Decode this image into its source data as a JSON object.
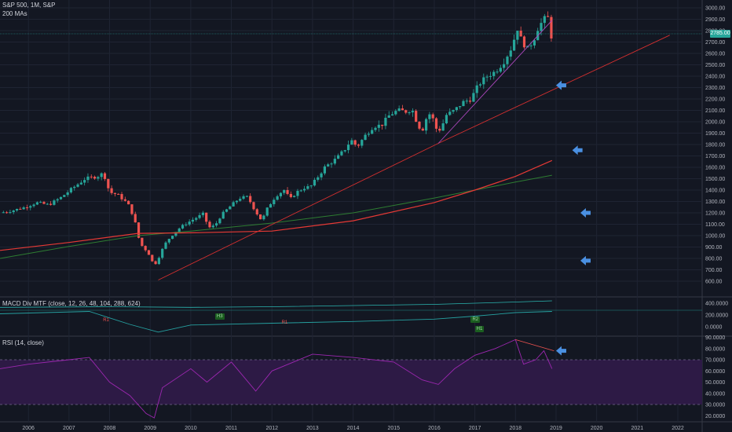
{
  "header": {
    "title": "S&P 500, 1M, S&P",
    "subtitle": "200 MAs"
  },
  "macd_header": "MACD Div MTF (close, 12, 26, 48, 104, 288, 624)",
  "rsi_header": "RSI (14, close)",
  "last_price": "2785.00",
  "colors": {
    "background": "#131722",
    "up": "#26a69a",
    "down": "#ef5350",
    "ma_red": "#e53935",
    "ma_green": "#2e7d32",
    "trend_red": "#d32f2f",
    "trend_purple": "#ab47bc",
    "arrow": "#4a90e2",
    "macd": "#26a0a0",
    "rsi": "#9c27b0",
    "rsi_band": "#2d1a45"
  },
  "macd_badges": [
    {
      "label": "R1",
      "color": "#ef5350"
    },
    {
      "label": "H3",
      "color": "#2e7d32"
    },
    {
      "label": "R1",
      "color": "#ef5350"
    },
    {
      "label": "R2",
      "color": "#2e7d32"
    },
    {
      "label": "H1",
      "color": "#2e7d32"
    }
  ],
  "chart_data": {
    "type": "candlestick",
    "price_axis": {
      "ticks": [
        "3000.00",
        "2900.00",
        "2800.00",
        "2700.00",
        "2600.00",
        "2500.00",
        "2400.00",
        "2300.00",
        "2200.00",
        "2100.00",
        "2000.00",
        "1900.00",
        "1800.00",
        "1700.00",
        "1600.00",
        "1500.00",
        "1400.00",
        "1300.00",
        "1200.00",
        "1100.00",
        "1000.00",
        "900.00",
        "800.00",
        "700.00",
        "600.00"
      ],
      "range": [
        560,
        3040
      ]
    },
    "macd_axis": {
      "ticks": [
        "400.0000",
        "200.0000",
        "0.0000"
      ]
    },
    "rsi_axis": {
      "ticks": [
        "90.0000",
        "80.0000",
        "70.0000",
        "60.0000",
        "50.0000",
        "40.0000",
        "30.0000",
        "20.0000"
      ],
      "range": [
        15,
        95
      ],
      "bands": [
        70,
        30
      ]
    },
    "time_axis": {
      "ticks": [
        "2006",
        "2007",
        "2008",
        "2009",
        "2010",
        "2011",
        "2012",
        "2013",
        "2014",
        "2015",
        "2016",
        "2017",
        "2018",
        "2019",
        "2020",
        "2021",
        "2022"
      ],
      "range": [
        2005.3,
        2022.6
      ]
    },
    "price_points": [
      [
        2005.3,
        1200
      ],
      [
        2005.6,
        1220
      ],
      [
        2005.9,
        1248
      ],
      [
        2006.2,
        1290
      ],
      [
        2006.5,
        1270
      ],
      [
        2006.8,
        1335
      ],
      [
        2007.1,
        1420
      ],
      [
        2007.4,
        1500
      ],
      [
        2007.7,
        1520
      ],
      [
        2007.85,
        1550
      ],
      [
        2008.0,
        1380
      ],
      [
        2008.2,
        1360
      ],
      [
        2008.45,
        1280
      ],
      [
        2008.6,
        1160
      ],
      [
        2008.75,
        930
      ],
      [
        2008.95,
        850
      ],
      [
        2009.1,
        735
      ],
      [
        2009.2,
        800
      ],
      [
        2009.35,
        920
      ],
      [
        2009.5,
        990
      ],
      [
        2009.7,
        1060
      ],
      [
        2009.9,
        1110
      ],
      [
        2010.2,
        1170
      ],
      [
        2010.3,
        1190
      ],
      [
        2010.45,
        1070
      ],
      [
        2010.6,
        1090
      ],
      [
        2010.75,
        1180
      ],
      [
        2010.95,
        1250
      ],
      [
        2011.2,
        1330
      ],
      [
        2011.4,
        1340
      ],
      [
        2011.6,
        1210
      ],
      [
        2011.75,
        1130
      ],
      [
        2011.9,
        1250
      ],
      [
        2012.1,
        1350
      ],
      [
        2012.3,
        1400
      ],
      [
        2012.45,
        1320
      ],
      [
        2012.6,
        1380
      ],
      [
        2012.8,
        1420
      ],
      [
        2012.95,
        1430
      ],
      [
        2013.1,
        1500
      ],
      [
        2013.3,
        1600
      ],
      [
        2013.45,
        1640
      ],
      [
        2013.6,
        1680
      ],
      [
        2013.8,
        1760
      ],
      [
        2013.95,
        1840
      ],
      [
        2014.1,
        1780
      ],
      [
        2014.3,
        1880
      ],
      [
        2014.5,
        1960
      ],
      [
        2014.7,
        1970
      ],
      [
        2014.9,
        2060
      ],
      [
        2015.1,
        2100
      ],
      [
        2015.3,
        2090
      ],
      [
        2015.45,
        2110
      ],
      [
        2015.6,
        1970
      ],
      [
        2015.7,
        1920
      ],
      [
        2015.85,
        2080
      ],
      [
        2015.95,
        2040
      ],
      [
        2016.05,
        1940
      ],
      [
        2016.15,
        1930
      ],
      [
        2016.3,
        2060
      ],
      [
        2016.5,
        2100
      ],
      [
        2016.7,
        2170
      ],
      [
        2016.9,
        2200
      ],
      [
        2017.1,
        2330
      ],
      [
        2017.3,
        2400
      ],
      [
        2017.5,
        2440
      ],
      [
        2017.7,
        2520
      ],
      [
        2017.9,
        2650
      ],
      [
        2018.05,
        2820
      ],
      [
        2018.15,
        2710
      ],
      [
        2018.3,
        2640
      ],
      [
        2018.45,
        2720
      ],
      [
        2018.55,
        2820
      ],
      [
        2018.7,
        2900
      ],
      [
        2018.8,
        2910
      ],
      [
        2018.9,
        2720
      ]
    ],
    "ma_red": [
      [
        2005.3,
        870
      ],
      [
        2007,
        940
      ],
      [
        2008.7,
        1020
      ],
      [
        2010,
        1025
      ],
      [
        2012,
        1040
      ],
      [
        2014,
        1130
      ],
      [
        2016,
        1290
      ],
      [
        2017,
        1400
      ],
      [
        2018,
        1520
      ],
      [
        2018.9,
        1660
      ]
    ],
    "ma_green": [
      [
        2005.3,
        800
      ],
      [
        2007,
        905
      ],
      [
        2008.7,
        1000
      ],
      [
        2010,
        1040
      ],
      [
        2012,
        1110
      ],
      [
        2014,
        1200
      ],
      [
        2016,
        1330
      ],
      [
        2017,
        1400
      ],
      [
        2018,
        1470
      ],
      [
        2018.9,
        1530
      ]
    ],
    "trend_red": [
      [
        2009.2,
        610
      ],
      [
        2016.1,
        1810
      ],
      [
        2021.8,
        2760
      ]
    ],
    "trend_purple": [
      [
        2016.1,
        1810
      ],
      [
        2018.9,
        2890
      ]
    ],
    "arrows": [
      [
        2019.0,
        2320
      ],
      [
        2019.4,
        1750
      ],
      [
        2019.6,
        1200
      ],
      [
        2019.6,
        780
      ]
    ],
    "macd_line": [
      [
        2005.3,
        220
      ],
      [
        2007.5,
        260
      ],
      [
        2008.5,
        40
      ],
      [
        2009.2,
        -90
      ],
      [
        2010,
        30
      ],
      [
        2012,
        60
      ],
      [
        2014,
        90
      ],
      [
        2016,
        130
      ],
      [
        2017,
        180
      ],
      [
        2018,
        240
      ],
      [
        2018.9,
        260
      ]
    ],
    "macd_signal": [
      [
        2005.3,
        330
      ],
      [
        2008,
        340
      ],
      [
        2010,
        330
      ],
      [
        2012,
        340
      ],
      [
        2014,
        360
      ],
      [
        2016,
        380
      ],
      [
        2018,
        420
      ],
      [
        2018.9,
        440
      ]
    ],
    "rsi_line": [
      [
        2005.3,
        62
      ],
      [
        2006,
        66
      ],
      [
        2007,
        70
      ],
      [
        2007.5,
        72
      ],
      [
        2008,
        50
      ],
      [
        2008.5,
        38
      ],
      [
        2008.9,
        22
      ],
      [
        2009.1,
        18
      ],
      [
        2009.3,
        45
      ],
      [
        2010,
        62
      ],
      [
        2010.4,
        50
      ],
      [
        2011,
        68
      ],
      [
        2011.6,
        42
      ],
      [
        2012,
        60
      ],
      [
        2013,
        75
      ],
      [
        2014,
        72
      ],
      [
        2015,
        68
      ],
      [
        2015.7,
        52
      ],
      [
        2016.1,
        48
      ],
      [
        2016.5,
        62
      ],
      [
        2017,
        74
      ],
      [
        2017.5,
        80
      ],
      [
        2018.0,
        88
      ],
      [
        2018.2,
        66
      ],
      [
        2018.5,
        70
      ],
      [
        2018.7,
        78
      ],
      [
        2018.9,
        62
      ]
    ]
  }
}
